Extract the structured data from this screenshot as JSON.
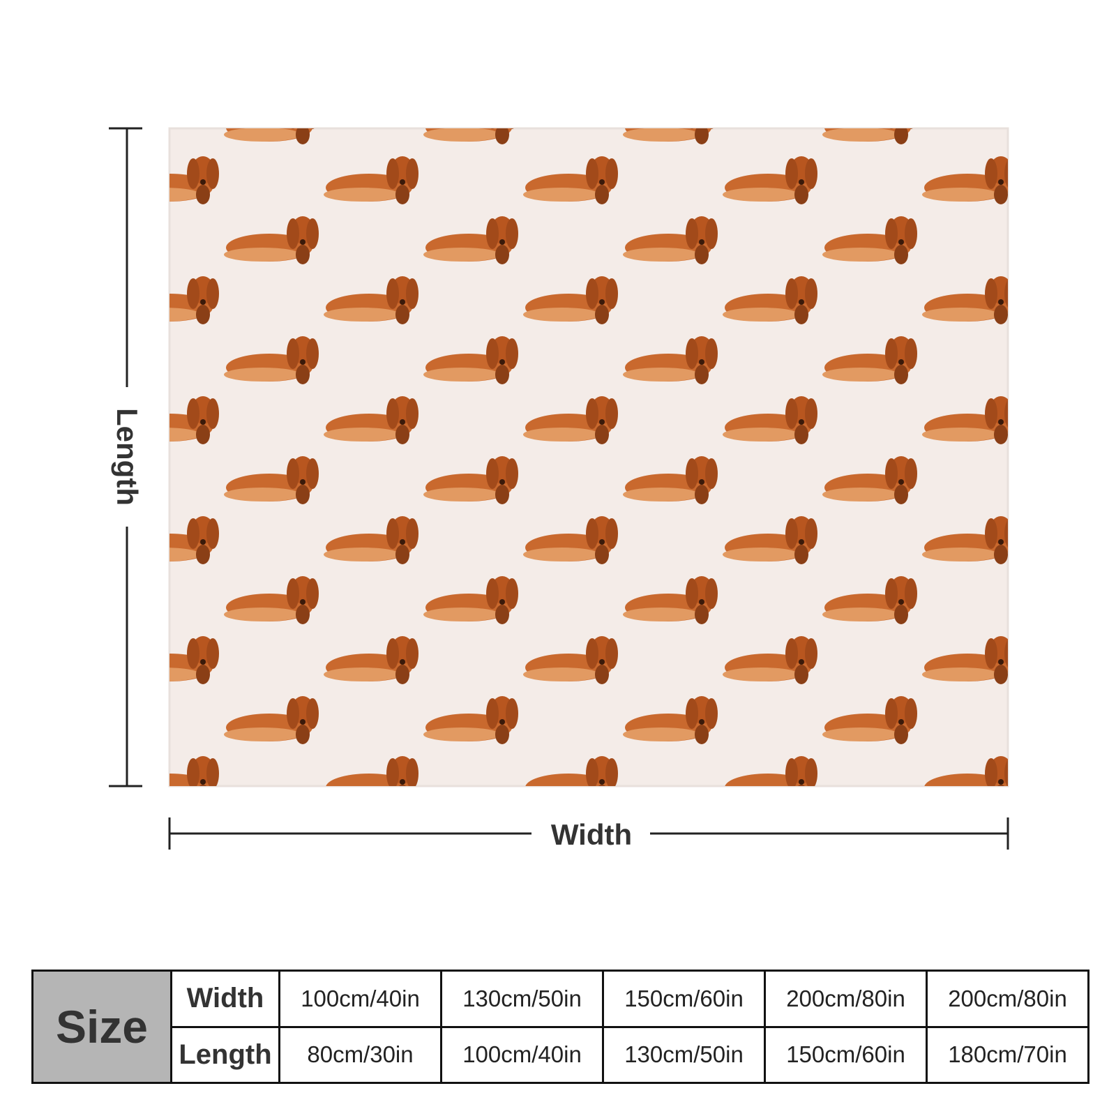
{
  "dimensions": {
    "length_label": "Length",
    "width_label": "Width"
  },
  "table": {
    "header": "Size",
    "rows": [
      [
        "Width",
        "100cm/40in",
        "130cm/50in",
        "150cm/60in",
        "200cm/80in",
        "200cm/80in"
      ],
      [
        "Length",
        "80cm/30in",
        "100cm/40in",
        "130cm/50in",
        "150cm/60in",
        "180cm/70in"
      ]
    ]
  }
}
